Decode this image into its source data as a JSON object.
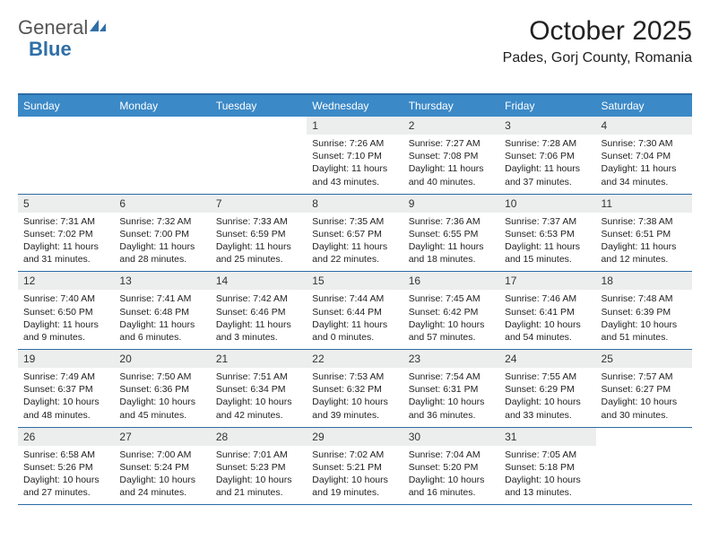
{
  "logo": {
    "text1": "General",
    "text2": "Blue"
  },
  "title": "October 2025",
  "location": "Pades, Gorj County, Romania",
  "colors": {
    "header_bg": "#3b89c7",
    "header_border": "#2c6ca5",
    "daynum_bg": "#eceded",
    "logo_blue": "#2f6fa8"
  },
  "days_of_week": [
    "Sunday",
    "Monday",
    "Tuesday",
    "Wednesday",
    "Thursday",
    "Friday",
    "Saturday"
  ],
  "weeks": [
    {
      "nums": [
        "",
        "",
        "",
        "1",
        "2",
        "3",
        "4"
      ],
      "details": [
        "",
        "",
        "",
        "Sunrise: 7:26 AM\nSunset: 7:10 PM\nDaylight: 11 hours and 43 minutes.",
        "Sunrise: 7:27 AM\nSunset: 7:08 PM\nDaylight: 11 hours and 40 minutes.",
        "Sunrise: 7:28 AM\nSunset: 7:06 PM\nDaylight: 11 hours and 37 minutes.",
        "Sunrise: 7:30 AM\nSunset: 7:04 PM\nDaylight: 11 hours and 34 minutes."
      ]
    },
    {
      "nums": [
        "5",
        "6",
        "7",
        "8",
        "9",
        "10",
        "11"
      ],
      "details": [
        "Sunrise: 7:31 AM\nSunset: 7:02 PM\nDaylight: 11 hours and 31 minutes.",
        "Sunrise: 7:32 AM\nSunset: 7:00 PM\nDaylight: 11 hours and 28 minutes.",
        "Sunrise: 7:33 AM\nSunset: 6:59 PM\nDaylight: 11 hours and 25 minutes.",
        "Sunrise: 7:35 AM\nSunset: 6:57 PM\nDaylight: 11 hours and 22 minutes.",
        "Sunrise: 7:36 AM\nSunset: 6:55 PM\nDaylight: 11 hours and 18 minutes.",
        "Sunrise: 7:37 AM\nSunset: 6:53 PM\nDaylight: 11 hours and 15 minutes.",
        "Sunrise: 7:38 AM\nSunset: 6:51 PM\nDaylight: 11 hours and 12 minutes."
      ]
    },
    {
      "nums": [
        "12",
        "13",
        "14",
        "15",
        "16",
        "17",
        "18"
      ],
      "details": [
        "Sunrise: 7:40 AM\nSunset: 6:50 PM\nDaylight: 11 hours and 9 minutes.",
        "Sunrise: 7:41 AM\nSunset: 6:48 PM\nDaylight: 11 hours and 6 minutes.",
        "Sunrise: 7:42 AM\nSunset: 6:46 PM\nDaylight: 11 hours and 3 minutes.",
        "Sunrise: 7:44 AM\nSunset: 6:44 PM\nDaylight: 11 hours and 0 minutes.",
        "Sunrise: 7:45 AM\nSunset: 6:42 PM\nDaylight: 10 hours and 57 minutes.",
        "Sunrise: 7:46 AM\nSunset: 6:41 PM\nDaylight: 10 hours and 54 minutes.",
        "Sunrise: 7:48 AM\nSunset: 6:39 PM\nDaylight: 10 hours and 51 minutes."
      ]
    },
    {
      "nums": [
        "19",
        "20",
        "21",
        "22",
        "23",
        "24",
        "25"
      ],
      "details": [
        "Sunrise: 7:49 AM\nSunset: 6:37 PM\nDaylight: 10 hours and 48 minutes.",
        "Sunrise: 7:50 AM\nSunset: 6:36 PM\nDaylight: 10 hours and 45 minutes.",
        "Sunrise: 7:51 AM\nSunset: 6:34 PM\nDaylight: 10 hours and 42 minutes.",
        "Sunrise: 7:53 AM\nSunset: 6:32 PM\nDaylight: 10 hours and 39 minutes.",
        "Sunrise: 7:54 AM\nSunset: 6:31 PM\nDaylight: 10 hours and 36 minutes.",
        "Sunrise: 7:55 AM\nSunset: 6:29 PM\nDaylight: 10 hours and 33 minutes.",
        "Sunrise: 7:57 AM\nSunset: 6:27 PM\nDaylight: 10 hours and 30 minutes."
      ]
    },
    {
      "nums": [
        "26",
        "27",
        "28",
        "29",
        "30",
        "31",
        ""
      ],
      "details": [
        "Sunrise: 6:58 AM\nSunset: 5:26 PM\nDaylight: 10 hours and 27 minutes.",
        "Sunrise: 7:00 AM\nSunset: 5:24 PM\nDaylight: 10 hours and 24 minutes.",
        "Sunrise: 7:01 AM\nSunset: 5:23 PM\nDaylight: 10 hours and 21 minutes.",
        "Sunrise: 7:02 AM\nSunset: 5:21 PM\nDaylight: 10 hours and 19 minutes.",
        "Sunrise: 7:04 AM\nSunset: 5:20 PM\nDaylight: 10 hours and 16 minutes.",
        "Sunrise: 7:05 AM\nSunset: 5:18 PM\nDaylight: 10 hours and 13 minutes.",
        ""
      ]
    }
  ]
}
